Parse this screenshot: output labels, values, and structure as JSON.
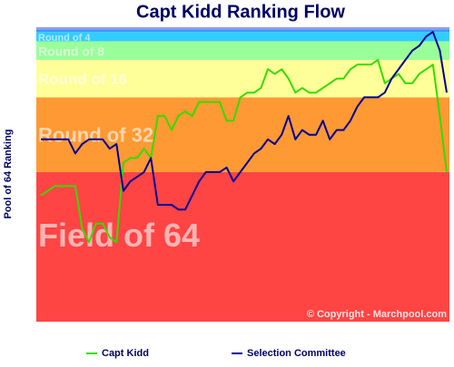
{
  "chart_data": {
    "type": "line",
    "title": "Capt Kidd Ranking Flow",
    "y_label": "Pool of 64 Ranking",
    "ylim": [
      64,
      1
    ],
    "copyright": "© Copyright - Marchpool.com",
    "bands": [
      {
        "label": "Field of 64",
        "from": 64,
        "to": 32,
        "color": "#ff4444"
      },
      {
        "label": "Round of 32",
        "from": 32,
        "to": 16,
        "color": "#ff9933"
      },
      {
        "label": "Round of 16",
        "from": 16,
        "to": 8,
        "color": "#ffff99"
      },
      {
        "label": "Round of 8",
        "from": 8,
        "to": 4,
        "color": "#99ff99"
      },
      {
        "label": "Round of 4",
        "from": 4,
        "to": 2,
        "color": "#33ccff"
      },
      {
        "from": 2,
        "to": 1.5,
        "color": "#3399ff"
      },
      {
        "from": 1.5,
        "to": 1,
        "color": "#9999ee"
      }
    ],
    "series": [
      {
        "name": "Capt Kidd",
        "color": "#33dd00",
        "values": [
          37,
          36,
          35,
          35,
          35,
          35,
          44,
          47,
          43,
          43,
          46,
          47,
          30,
          29,
          29,
          27,
          29,
          20,
          20,
          23,
          20,
          19,
          20,
          17,
          17,
          17,
          17,
          21,
          21,
          16,
          15,
          15,
          14,
          10,
          11,
          10,
          12,
          15,
          14,
          15,
          15,
          14,
          13,
          12,
          12,
          10,
          9,
          9,
          9,
          8,
          13,
          12,
          11,
          13,
          13,
          11,
          10,
          9,
          20,
          32
        ]
      },
      {
        "name": "Selection Committee",
        "color": "#000099",
        "values": [
          25,
          25,
          25,
          25,
          25,
          28,
          26,
          25,
          25,
          25,
          27,
          26,
          36,
          34,
          33,
          32,
          29,
          39,
          39,
          39,
          40,
          40,
          37,
          34,
          32,
          32,
          32,
          31,
          34,
          32,
          30,
          28,
          27,
          25,
          26,
          24,
          20,
          25,
          23,
          24,
          24,
          21,
          25,
          23,
          23,
          21,
          18,
          16,
          16,
          16,
          15,
          12,
          10,
          8,
          6,
          5,
          3,
          2,
          6,
          15
        ]
      }
    ]
  }
}
